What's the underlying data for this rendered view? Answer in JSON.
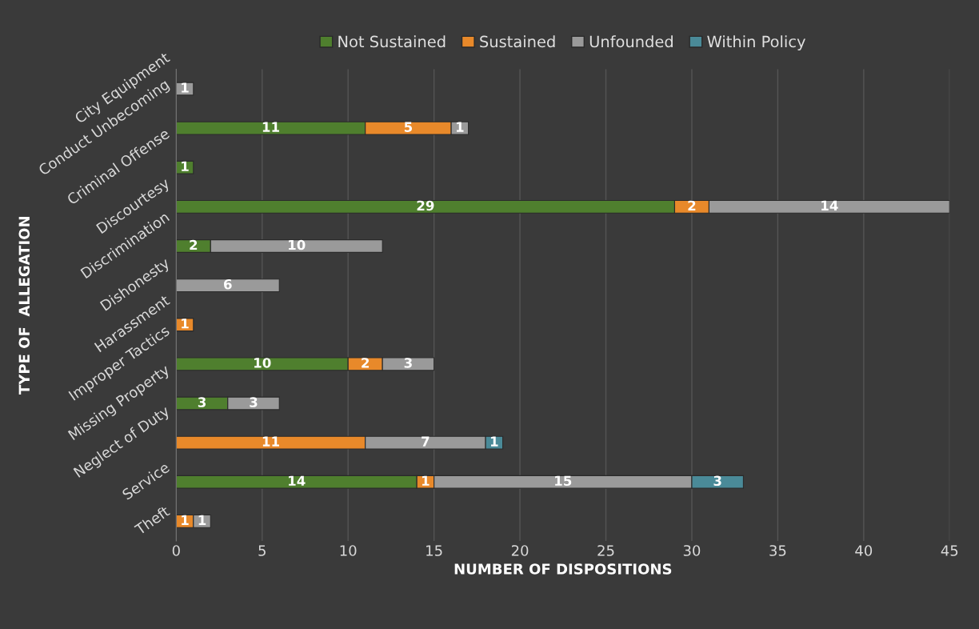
{
  "chart_data": {
    "type": "bar",
    "orientation": "horizontal",
    "stacked": true,
    "data_labels": true,
    "xlabel": "NUMBER OF DISPOSITIONS",
    "ylabel": "TYPE OF  ALLEGATION",
    "categories": [
      "City Equipment",
      "Conduct Unbecoming",
      "Criminal Offense",
      "Discourtesy",
      "Discrimination",
      "Dishonesty",
      "Harassment",
      "Improper Tactics",
      "Missing Property",
      "Neglect of Duty",
      "Service",
      "Theft"
    ],
    "series": [
      {
        "name": "Not Sustained",
        "color": "#4f7f2e",
        "values": [
          null,
          11,
          1,
          29,
          2,
          null,
          null,
          10,
          3,
          null,
          14,
          null
        ]
      },
      {
        "name": "Sustained",
        "color": "#e8892a",
        "values": [
          null,
          5,
          null,
          2,
          null,
          null,
          1,
          2,
          null,
          11,
          1,
          1
        ]
      },
      {
        "name": "Unfounded",
        "color": "#9a9a9a",
        "values": [
          1,
          1,
          null,
          14,
          10,
          6,
          null,
          3,
          3,
          7,
          15,
          1
        ]
      },
      {
        "name": "Within Policy",
        "color": "#4a8a98",
        "values": [
          null,
          null,
          null,
          null,
          null,
          null,
          null,
          null,
          null,
          1,
          3,
          null
        ]
      }
    ],
    "xlim": [
      0,
      45
    ],
    "xticks": [
      0,
      5,
      10,
      15,
      20,
      25,
      30,
      35,
      40,
      45
    ],
    "grid": "x",
    "legend": "top"
  }
}
